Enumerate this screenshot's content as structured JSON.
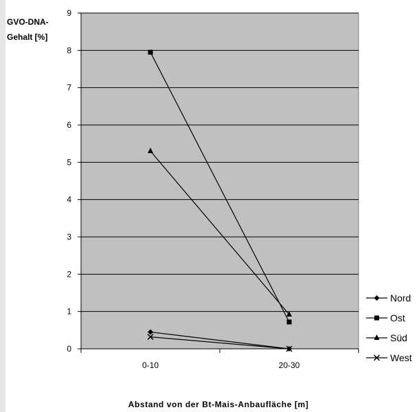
{
  "chart_data": {
    "type": "line",
    "title": "",
    "ylabel_lines": [
      "GVO-DNA-",
      "Gehalt [%]"
    ],
    "xlabel": "Abstand von der Bt-Mais-Anbaufläche [m]",
    "categories": [
      "0-10",
      "20-30"
    ],
    "ylim": [
      0,
      9
    ],
    "yticks": [
      "0",
      "1",
      "2",
      "3",
      "4",
      "5",
      "6",
      "7",
      "8",
      "9"
    ],
    "grid": true,
    "legend_position": "right",
    "plot_background": "#c0c0c0",
    "series": [
      {
        "name": "Nord",
        "marker": "diamond",
        "values": [
          0.45,
          0.0
        ]
      },
      {
        "name": "Ost",
        "marker": "square",
        "values": [
          7.95,
          0.72
        ]
      },
      {
        "name": "Süd",
        "marker": "triangle",
        "values": [
          5.3,
          0.92
        ]
      },
      {
        "name": "West",
        "marker": "x",
        "values": [
          0.32,
          0.0
        ]
      }
    ]
  }
}
